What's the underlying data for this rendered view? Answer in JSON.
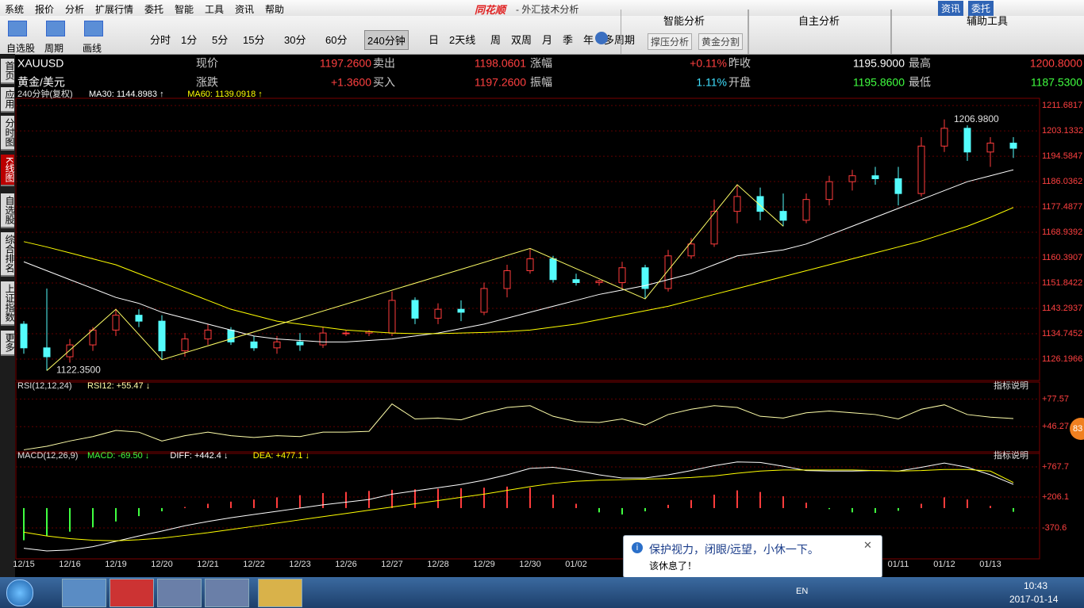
{
  "menu": [
    "系统",
    "报价",
    "分析",
    "扩展行情",
    "委托",
    "智能",
    "工具",
    "资讯",
    "帮助"
  ],
  "title_bar": {
    "app": "同花顺",
    "title": "- 外汇技术分析",
    "buttons": [
      "资讯",
      "委托"
    ]
  },
  "toolbar": {
    "tools": [
      "自选股",
      "周期",
      "画线"
    ],
    "periods": [
      "分时",
      "1分",
      "5分",
      "15分",
      "30分",
      "60分",
      "240分钟",
      "日",
      "2天线",
      "周",
      "双周",
      "月",
      "季",
      "年",
      "多周期"
    ],
    "selected_period_index": 6,
    "panels": [
      {
        "title": "智能分析",
        "buttons": [
          "撑压分析",
          "黄金分割"
        ]
      },
      {
        "title": "自主分析",
        "buttons": []
      },
      {
        "title": "辅助工具",
        "buttons": []
      }
    ]
  },
  "sidebar": {
    "tabs": [
      "首页",
      "应用",
      "分时图",
      "K线图",
      "自选股",
      "综合排名",
      "上证指数",
      "更多"
    ],
    "active_index": 3
  },
  "quote": {
    "rows": [
      [
        {
          "text": "XAUUSD",
          "color": "#ffffff"
        },
        {
          "text": "现价",
          "color": "#c8c8c8"
        },
        {
          "text": "1197.2600",
          "color": "#ff4040"
        },
        {
          "text": "卖出",
          "color": "#c8c8c8"
        },
        {
          "text": "1198.0601",
          "color": "#ff4040"
        },
        {
          "text": "涨幅",
          "color": "#c8c8c8"
        },
        {
          "text": "+0.11%",
          "color": "#ff4040"
        },
        {
          "text": "昨收",
          "color": "#c8c8c8"
        },
        {
          "text": "1195.9000",
          "color": "#ffffff"
        },
        {
          "text": "最高",
          "color": "#c8c8c8"
        },
        {
          "text": "1200.8000",
          "color": "#ff4040"
        }
      ],
      [
        {
          "text": "黄金/美元",
          "color": "#ffffff"
        },
        {
          "text": "涨跌",
          "color": "#c8c8c8"
        },
        {
          "text": "+1.3600",
          "color": "#ff4040"
        },
        {
          "text": "买入",
          "color": "#c8c8c8"
        },
        {
          "text": "1197.2600",
          "color": "#ff4040"
        },
        {
          "text": "振幅",
          "color": "#c8c8c8"
        },
        {
          "text": "1.11%",
          "color": "#40e0ff"
        },
        {
          "text": "开盘",
          "color": "#c8c8c8"
        },
        {
          "text": "1195.8600",
          "color": "#40ff40"
        },
        {
          "text": "最低",
          "color": "#c8c8c8"
        },
        {
          "text": "1187.5300",
          "color": "#40ff40"
        }
      ]
    ]
  },
  "chart_data": [
    {
      "type": "candlestick",
      "title": "240分钟(复权)",
      "categories": [
        "12/15",
        null,
        "12/16",
        null,
        "12/19",
        null,
        "12/20",
        null,
        "12/21",
        null,
        "12/22",
        null,
        "12/23",
        null,
        "12/26",
        null,
        "12/27",
        null,
        "12/28",
        null,
        "12/29",
        null,
        "12/30",
        null,
        "01/02",
        null,
        null,
        null,
        null,
        null,
        null,
        null,
        null,
        null,
        null,
        null,
        null,
        null,
        "01/11",
        null,
        "01/12",
        null,
        "01/13",
        null
      ],
      "open": [
        1138,
        1130,
        1127,
        1131,
        1136,
        1141,
        1139,
        1129,
        1133,
        1136,
        1132,
        1130,
        1132,
        1131,
        1135,
        1135,
        1135,
        1146,
        1140,
        1143,
        1142,
        1150,
        1156,
        1160,
        1153,
        1152,
        1152,
        1157,
        1150,
        1161,
        1165,
        1176,
        1181,
        1176,
        1173,
        1180,
        1186,
        1188,
        1187,
        1182,
        1198,
        1204,
        1196,
        1199
      ],
      "high": [
        1139,
        1150,
        1133,
        1137,
        1143,
        1143,
        1141,
        1135,
        1138,
        1137,
        1134,
        1134,
        1135,
        1137,
        1136,
        1136,
        1149,
        1147,
        1145,
        1146,
        1152,
        1158,
        1163.5,
        1161,
        1155,
        1153,
        1159,
        1158,
        1163,
        1167,
        1180,
        1185,
        1184,
        1182,
        1182,
        1188,
        1190,
        1191,
        1191,
        1201,
        1206.98,
        1205,
        1201,
        1201
      ],
      "low": [
        1128,
        1122.35,
        1125,
        1129,
        1134,
        1137,
        1126,
        1127,
        1131,
        1131,
        1129,
        1128,
        1129,
        1130,
        1134,
        1134,
        1134,
        1138,
        1138,
        1139,
        1141,
        1147,
        1155,
        1152,
        1151,
        1151,
        1150,
        1146.5,
        1149,
        1160,
        1164,
        1172,
        1173,
        1171,
        1172,
        1178,
        1183,
        1185,
        1178,
        1181,
        1196,
        1193,
        1191,
        1194
      ],
      "close": [
        1130,
        1127,
        1131,
        1136,
        1141,
        1139,
        1129,
        1133,
        1136,
        1132,
        1130,
        1132,
        1131,
        1135,
        1135,
        1135.5,
        1146,
        1140,
        1143,
        1142,
        1150,
        1156,
        1160,
        1153,
        1152,
        1152.5,
        1157,
        1150,
        1161,
        1165,
        1176,
        1181,
        1176,
        1173,
        1180,
        1186,
        1188,
        1187,
        1182,
        1198,
        1204,
        1196,
        1199,
        1197.26
      ],
      "up_color": "#ff3c3c",
      "down_color": "#54fcfc",
      "series": [
        {
          "name": "MA30: 1144.8983 ↑",
          "color": "#ffffff",
          "values": [
            1159,
            1156,
            1153,
            1150,
            1147,
            1145,
            1142,
            1140,
            1138,
            1136,
            1134,
            1133,
            1132.5,
            1132,
            1132,
            1132.5,
            1133,
            1134,
            1135,
            1136.5,
            1138,
            1140,
            1142,
            1144,
            1146,
            1148,
            1149.5,
            1151,
            1153,
            1155,
            1158,
            1161,
            1162,
            1163,
            1165,
            1168,
            1171,
            1174,
            1177,
            1180,
            1183,
            1186,
            1188,
            1190
          ]
        },
        {
          "name": "MA60: 1139.0918 ↑",
          "color": "#ffff00",
          "values": [
            1165.8,
            1164,
            1162,
            1160,
            1158,
            1155,
            1152,
            1149,
            1146,
            1143,
            1141,
            1139,
            1138,
            1137,
            1136,
            1135.5,
            1135,
            1134.8,
            1134.8,
            1135,
            1135.2,
            1135.5,
            1136,
            1137,
            1138,
            1139.5,
            1141,
            1142.5,
            1144,
            1146,
            1148,
            1150,
            1152,
            1154,
            1156,
            1158,
            1160,
            1162,
            1164,
            1166,
            1168.5,
            1171,
            1174,
            1177.3
          ]
        }
      ],
      "zigzag": {
        "color": "#ffff66",
        "index": [
          1,
          4,
          6,
          22,
          27,
          31,
          33
        ],
        "values": [
          1122.35,
          1143,
          1126,
          1163.5,
          1146.5,
          1185,
          1171
        ]
      },
      "annotations": [
        {
          "text": "1206.9800"
        },
        {
          "text": "1122.3500"
        }
      ],
      "ylim": [
        1119.0,
        1212.5
      ],
      "yticks": [
        1126.1966,
        1134.7452,
        1143.2937,
        1151.8422,
        1160.3907,
        1168.9392,
        1177.4877,
        1186.0362,
        1194.5847,
        1203.1332,
        1211.6817
      ],
      "grid": true
    },
    {
      "type": "line",
      "title": "RSI(12,12,24)",
      "button": "指标说明",
      "series": [
        {
          "name": "RSI12: +55.47 ↓",
          "color": "#ffffaa",
          "values": [
            20,
            24,
            30,
            35,
            42,
            40,
            30,
            36,
            40,
            36,
            34,
            36,
            35,
            40,
            40,
            41,
            72,
            55,
            56,
            54,
            62,
            68,
            70,
            58,
            52,
            51,
            55,
            48,
            60,
            66,
            70,
            68,
            58,
            56,
            62,
            64,
            62,
            60,
            55,
            66,
            71,
            60,
            57,
            55.47
          ]
        }
      ],
      "ylim": [
        15.9,
        91.4
      ],
      "yticks": [
        {
          "value": 46.27,
          "label": "+46.27"
        },
        {
          "value": 77.57,
          "label": "+77.57"
        }
      ],
      "grid": true
    },
    {
      "type": "macd",
      "title": "MACD(12,26,9)",
      "button": "指标说明",
      "histogram": {
        "name": "MACD: -69.50 ↓",
        "color": "#40ff40",
        "up_color": "#ff3c3c",
        "down_color": "#40ff40",
        "values": [
          -600,
          -520,
          -440,
          -360,
          -250,
          -150,
          -60,
          20,
          80,
          120,
          160,
          200,
          240,
          280,
          300,
          320,
          340,
          350,
          360,
          370,
          380,
          400,
          380,
          250,
          80,
          -80,
          -120,
          -60,
          60,
          150,
          250,
          330,
          300,
          220,
          100,
          -20,
          -80,
          -90,
          -50,
          80,
          200,
          160,
          40,
          -69.5
        ]
      },
      "series": [
        {
          "name": "DIFF: +442.4 ↓",
          "color": "#ffffff",
          "values": [
            -750,
            -800,
            -780,
            -720,
            -620,
            -520,
            -430,
            -330,
            -250,
            -180,
            -120,
            -60,
            0,
            60,
            110,
            160,
            260,
            320,
            380,
            440,
            520,
            620,
            740,
            760,
            700,
            620,
            560,
            560,
            620,
            700,
            790,
            860,
            850,
            780,
            700,
            690,
            690,
            700,
            690,
            760,
            840,
            760,
            620,
            442.4
          ]
        },
        {
          "name": "DEA: +477.1 ↓",
          "color": "#ffff00",
          "values": [
            -450,
            -520,
            -570,
            -600,
            -610,
            -590,
            -560,
            -510,
            -460,
            -400,
            -340,
            -280,
            -220,
            -160,
            -100,
            -40,
            20,
            80,
            140,
            200,
            260,
            330,
            400,
            460,
            500,
            520,
            530,
            540,
            550,
            570,
            600,
            650,
            690,
            710,
            710,
            710,
            710,
            700,
            690,
            700,
            720,
            720,
            690,
            477.1
          ]
        }
      ],
      "ylim": [
        -947,
        959.8
      ],
      "yticks": [
        {
          "value": -370.6,
          "label": "-370.6"
        },
        {
          "value": 206.1,
          "label": "+206.1"
        },
        {
          "value": 767.7,
          "label": "+767.7"
        }
      ],
      "grid": true
    }
  ],
  "badge": "83",
  "popup": {
    "title": "保护视力，闭眼/远望，小休一下。",
    "body": "该休息了！"
  },
  "taskbar": {
    "lang": "EN",
    "time": "10:43",
    "date": "2017-01-14"
  }
}
